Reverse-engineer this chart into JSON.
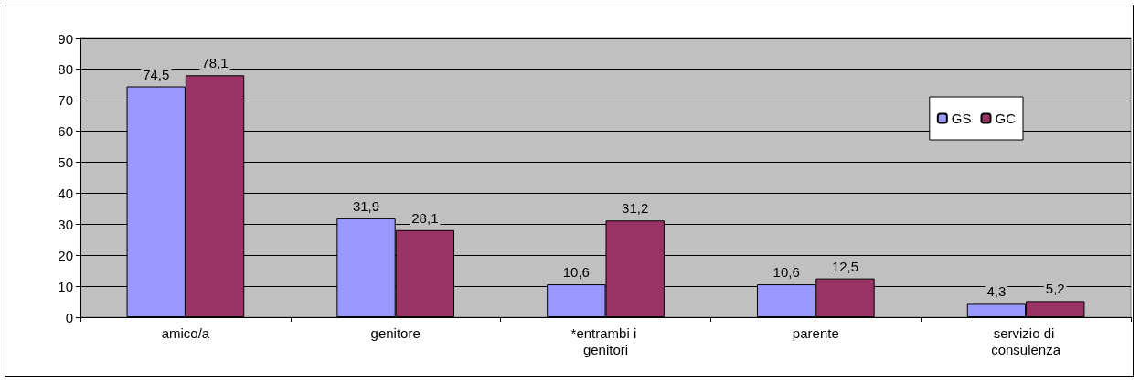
{
  "chart_data": {
    "type": "bar",
    "categories": [
      "amico/a",
      "genitore",
      "*entrambi i genitori",
      "parente",
      "servizio di consulenza"
    ],
    "series": [
      {
        "name": "GS",
        "color": "#9999ff",
        "values": [
          74.5,
          31.9,
          10.6,
          10.6,
          4.3
        ],
        "value_labels": [
          "74,5",
          "31,9",
          "10,6",
          "10,6",
          "4,3"
        ]
      },
      {
        "name": "GC",
        "color": "#993366",
        "values": [
          78.1,
          28.1,
          31.2,
          12.5,
          5.2
        ],
        "value_labels": [
          "78,1",
          "28,1",
          "31,2",
          "12,5",
          "5,2"
        ]
      }
    ],
    "ylim": [
      0,
      90
    ],
    "yticks": [
      0,
      10,
      20,
      30,
      40,
      50,
      60,
      70,
      80,
      90
    ],
    "grid": "y",
    "legend": "top right"
  }
}
